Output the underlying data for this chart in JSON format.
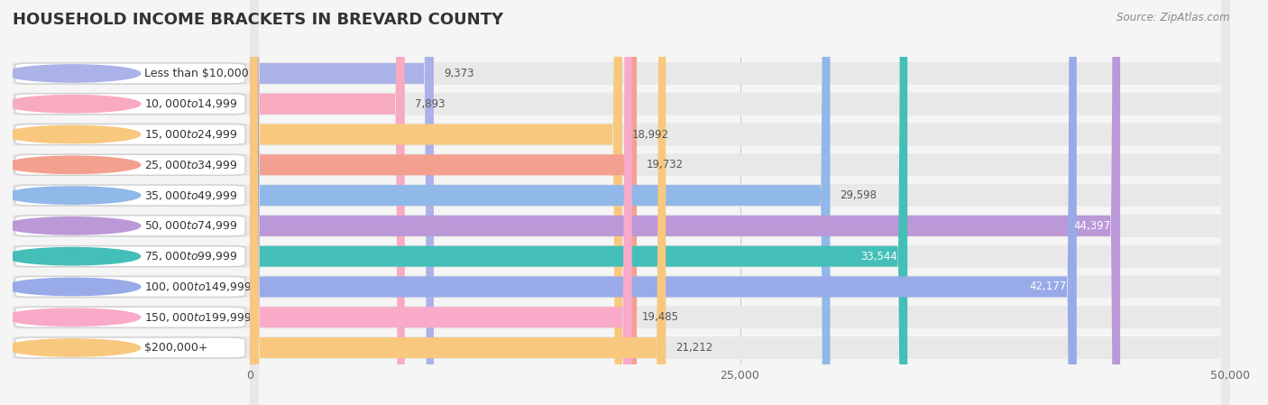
{
  "title": "HOUSEHOLD INCOME BRACKETS IN BREVARD COUNTY",
  "source": "Source: ZipAtlas.com",
  "categories": [
    "Less than $10,000",
    "$10,000 to $14,999",
    "$15,000 to $24,999",
    "$25,000 to $34,999",
    "$35,000 to $49,999",
    "$50,000 to $74,999",
    "$75,000 to $99,999",
    "$100,000 to $149,999",
    "$150,000 to $199,999",
    "$200,000+"
  ],
  "values": [
    9373,
    7893,
    18992,
    19732,
    29598,
    44397,
    33544,
    42177,
    19485,
    21212
  ],
  "bar_colors": [
    "#aab2e8",
    "#f8aabf",
    "#f8c87e",
    "#f4a090",
    "#90b8e8",
    "#bb98d8",
    "#44bfb8",
    "#98aae8",
    "#f8aac8",
    "#f8c87e"
  ],
  "xlim": [
    0,
    50000
  ],
  "xticks": [
    0,
    25000,
    50000
  ],
  "xticklabels": [
    "0",
    "25,000",
    "50,000"
  ],
  "background_color": "#f5f5f5",
  "row_bg_color": "#e8e8e8",
  "title_fontsize": 13,
  "label_fontsize": 9,
  "value_fontsize": 8.5,
  "source_fontsize": 8.5,
  "value_colors_inside": [
    "#ffffff",
    "#ffffff",
    "#ffffff",
    "#ffffff",
    "#ffffff",
    "#ffffff",
    "#ffffff",
    "#ffffff",
    "#ffffff",
    "#ffffff"
  ],
  "value_threshold": 30000
}
